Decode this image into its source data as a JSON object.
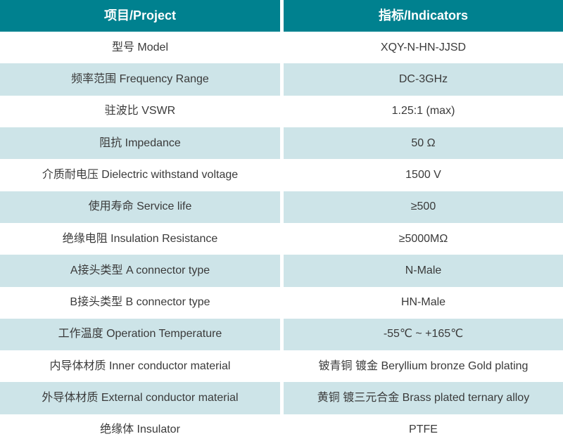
{
  "table": {
    "title": "product-specification-table",
    "header": {
      "project_label": "项目/Project",
      "indicator_label": "指标/Indicators"
    },
    "rows": [
      {
        "project": "型号 Model",
        "indicator": "XQY-N-HN-JJSD"
      },
      {
        "project": "频率范围 Frequency Range",
        "indicator": "DC-3GHz"
      },
      {
        "project": "驻波比 VSWR",
        "indicator": "1.25:1 (max)"
      },
      {
        "project": "阻抗 Impedance",
        "indicator": "50 Ω"
      },
      {
        "project": "介质耐电压 Dielectric withstand voltage",
        "indicator": "1500 V"
      },
      {
        "project": "使用寿命 Service life",
        "indicator": "≥500"
      },
      {
        "project": "绝缘电阻 Insulation Resistance",
        "indicator": "≥5000MΩ"
      },
      {
        "project": "A接头类型 A connector type",
        "indicator": "N-Male"
      },
      {
        "project": "B接头类型 B connector type",
        "indicator": "HN-Male"
      },
      {
        "project": "工作温度 Operation Temperature",
        "indicator": "-55℃ ~ +165℃"
      },
      {
        "project": "内导体材质 Inner conductor material",
        "indicator": "铍青铜 镀金 Beryllium bronze Gold plating"
      },
      {
        "project": "外导体材质 External conductor material",
        "indicator": "黄铜 镀三元合金 Brass plated ternary alloy"
      },
      {
        "project": "绝缘体 Insulator",
        "indicator": "PTFE"
      }
    ],
    "colors": {
      "header_bg": "#00818f",
      "header_text": "#ffffff",
      "row_alt_bg": "#cde4e8",
      "row_bg": "#ffffff",
      "body_text": "#3a3a3a",
      "divider": "#ffffff"
    }
  }
}
